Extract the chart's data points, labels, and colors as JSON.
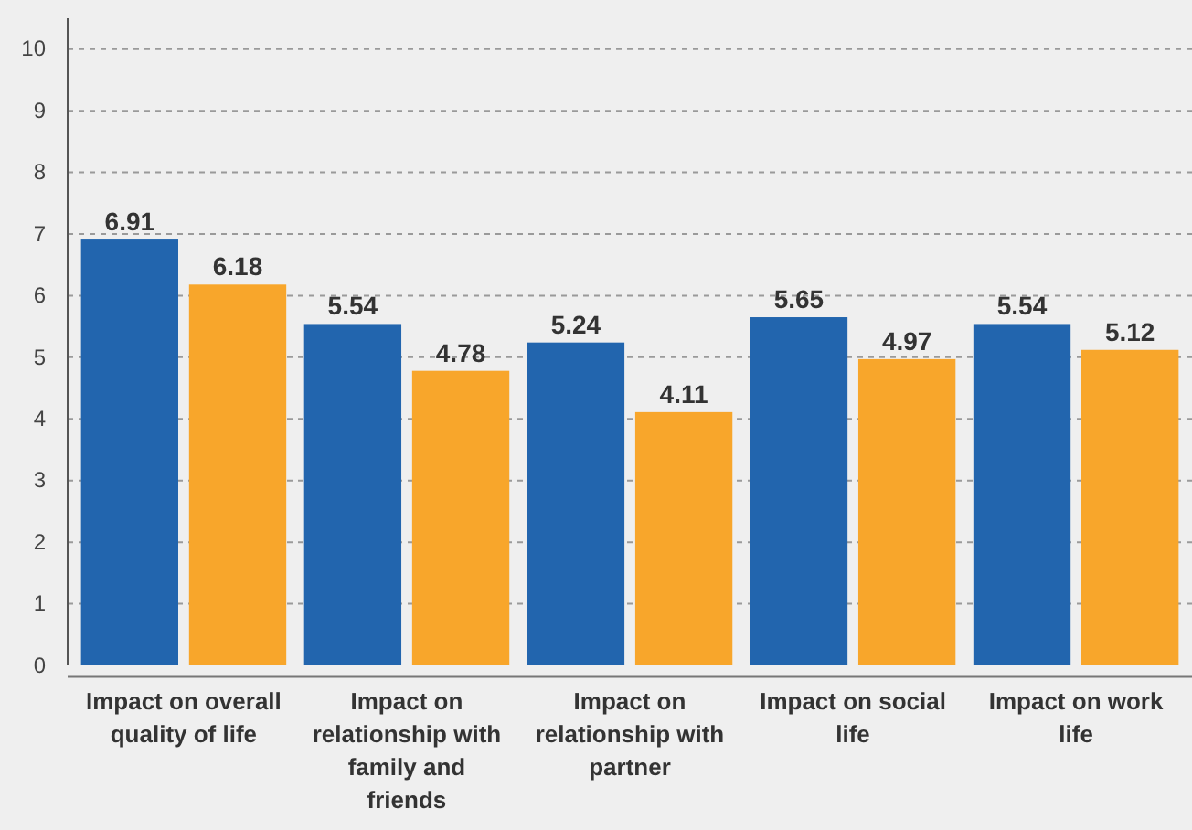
{
  "chart_data": {
    "type": "bar",
    "categories": [
      "Impact on overall quality of life",
      "Impact on relationship with family and friends",
      "Impact on relationship with partner",
      "Impact on social life",
      "Impact on work life"
    ],
    "series": [
      {
        "color": "#2265ae",
        "values": [
          6.91,
          5.54,
          5.24,
          5.65,
          5.54
        ]
      },
      {
        "color": "#f8a62b",
        "values": [
          6.18,
          4.78,
          4.11,
          4.97,
          5.12
        ]
      }
    ],
    "ylim": [
      0,
      10.5
    ],
    "yticks": [
      0,
      1,
      2,
      3,
      4,
      5,
      6,
      7,
      8,
      9,
      10
    ],
    "grid": "y",
    "data_labels": true
  }
}
